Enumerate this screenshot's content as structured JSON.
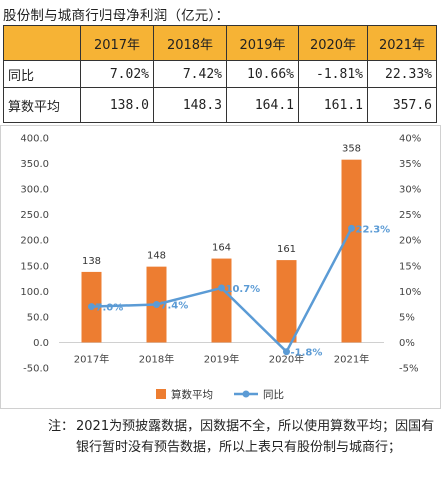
{
  "title": "股份制与城商行归母净利润（亿元）：",
  "table": {
    "header": [
      "",
      "2017年",
      "2018年",
      "2019年",
      "2020年",
      "2021年"
    ],
    "rows": [
      {
        "label": "同比",
        "cells": [
          "7.02%",
          "7.42%",
          "10.66%",
          "-1.81%",
          "22.33%"
        ]
      },
      {
        "label": "算数平均",
        "cells": [
          "138.0",
          "148.3",
          "164.1",
          "161.1",
          "357.6"
        ]
      }
    ]
  },
  "chart_data": {
    "type": "bar",
    "categories": [
      "2017年",
      "2018年",
      "2019年",
      "2020年",
      "2021年"
    ],
    "series": [
      {
        "name": "算数平均",
        "type": "bar",
        "axis": "left",
        "color": "#ed7d31",
        "values": [
          138.0,
          148.3,
          164.1,
          161.1,
          357.6
        ],
        "labels": [
          "138",
          "148",
          "164",
          "161",
          "358"
        ]
      },
      {
        "name": "同比",
        "type": "line",
        "axis": "right",
        "color": "#5b9bd5",
        "values": [
          7.02,
          7.42,
          10.66,
          -1.81,
          22.33
        ],
        "labels": [
          "7.0%",
          "7.4%",
          "10.7%",
          "-1.8%",
          "22.3%"
        ]
      }
    ],
    "y_left": {
      "min": -50,
      "max": 400,
      "step": 50,
      "ticks": [
        "-50.0",
        "0.0",
        "50.0",
        "100.0",
        "150.0",
        "200.0",
        "250.0",
        "300.0",
        "350.0",
        "400.0"
      ]
    },
    "y_right": {
      "min": -5,
      "max": 40,
      "step": 5,
      "ticks": [
        "-5%",
        "0%",
        "5%",
        "10%",
        "15%",
        "20%",
        "25%",
        "30%",
        "35%",
        "40%"
      ]
    },
    "legend_position": "bottom",
    "grid": false
  },
  "note": {
    "label": "注：",
    "text": "2021为预披露数据，因数据不全，所以使用算数平均；因国有银行暂时没有预告数据，所以上表只有股份制与城商行；"
  }
}
